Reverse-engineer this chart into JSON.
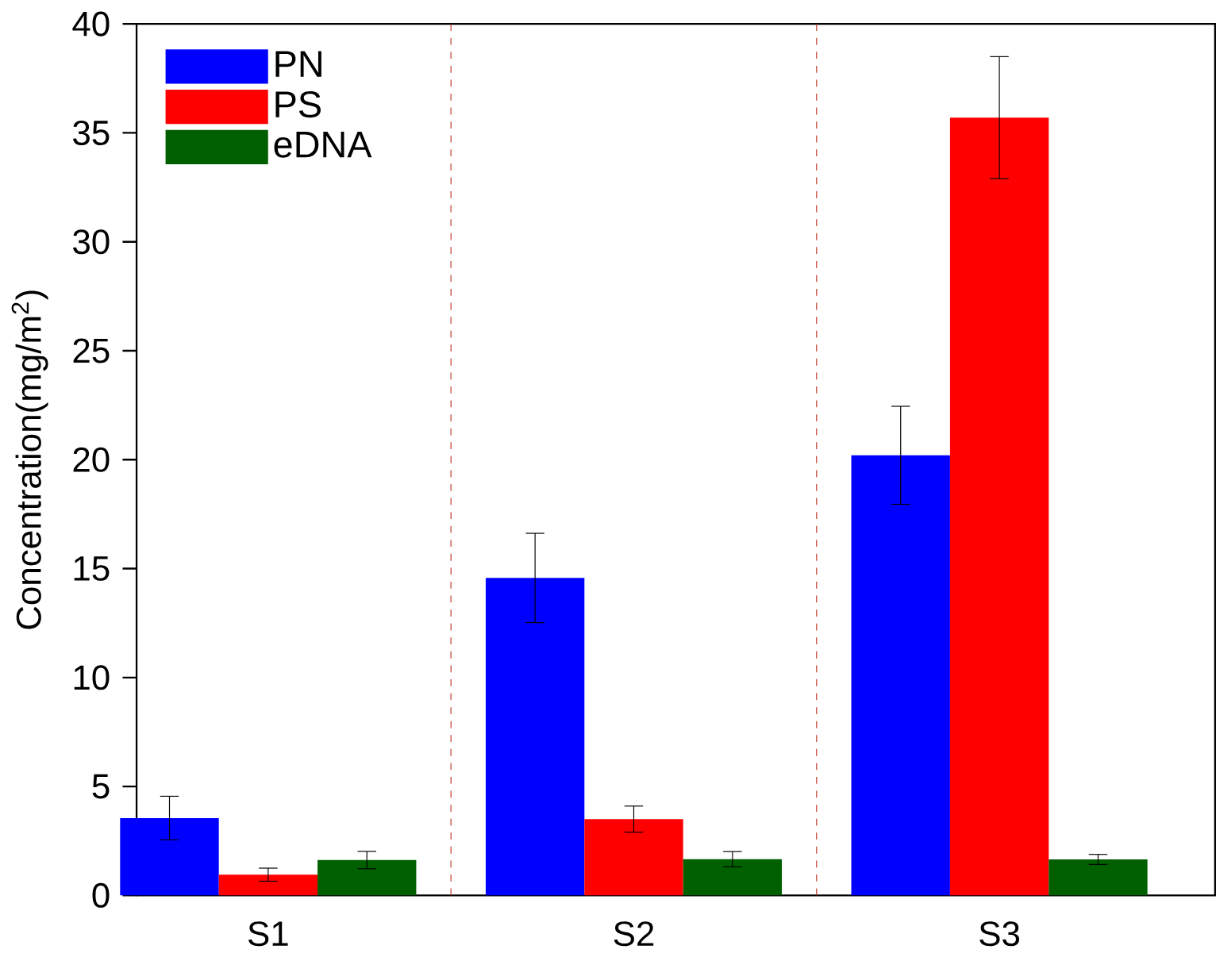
{
  "chart_data": {
    "type": "bar",
    "ylabel": "Concentration(mg/m$^{2}$)",
    "categories": [
      "S1",
      "S2",
      "S3"
    ],
    "series": [
      {
        "name": "PN",
        "color": "#0000ff",
        "values": [
          3.55,
          14.57,
          20.2
        ],
        "errors": [
          1.0,
          2.05,
          2.25
        ]
      },
      {
        "name": "PS",
        "color": "#ff0000",
        "values": [
          0.95,
          3.5,
          35.7
        ],
        "errors": [
          0.3,
          0.6,
          2.8
        ]
      },
      {
        "name": "eDNA",
        "color": "#006000",
        "values": [
          1.62,
          1.66,
          1.65
        ],
        "errors": [
          0.4,
          0.35,
          0.23
        ]
      }
    ],
    "ylim": [
      0,
      40
    ],
    "yticks": [
      0,
      5,
      10,
      15,
      20,
      25,
      30,
      35,
      40
    ],
    "legend": "top left",
    "grid": false
  }
}
